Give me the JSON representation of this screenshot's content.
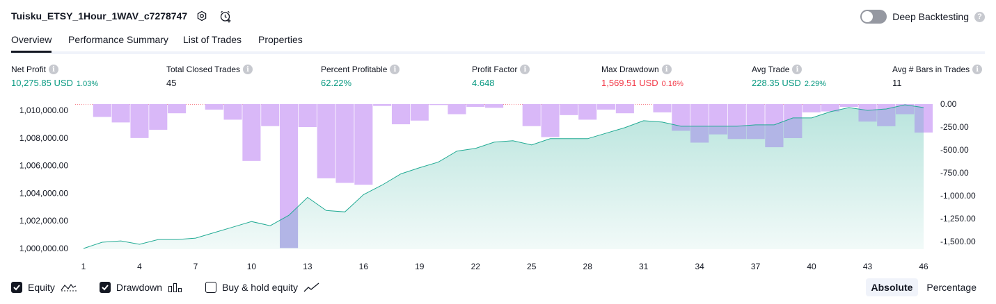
{
  "header": {
    "strategy_name": "Tuisku_ETSY_1Hour_1WAV_c7278747",
    "deep_backtesting_label": "Deep Backtesting",
    "deep_backtesting_enabled": false
  },
  "tabs": [
    {
      "label": "Overview",
      "active": true
    },
    {
      "label": "Performance Summary",
      "active": false
    },
    {
      "label": "List of Trades",
      "active": false
    },
    {
      "label": "Properties",
      "active": false
    }
  ],
  "metrics": [
    {
      "label": "Net Profit",
      "value": "10,275.85 USD",
      "pct": "1.03%",
      "tone": "pos"
    },
    {
      "label": "Total Closed Trades",
      "value": "45",
      "pct": "",
      "tone": "neu"
    },
    {
      "label": "Percent Profitable",
      "value": "62.22%",
      "pct": "",
      "tone": "pos"
    },
    {
      "label": "Profit Factor",
      "value": "4.648",
      "pct": "",
      "tone": "pos"
    },
    {
      "label": "Max Drawdown",
      "value": "1,569.51 USD",
      "pct": "0.16%",
      "tone": "neg"
    },
    {
      "label": "Avg Trade",
      "value": "228.35 USD",
      "pct": "2.29%",
      "tone": "pos"
    },
    {
      "label": "Avg # Bars in Trades",
      "value": "11",
      "pct": "",
      "tone": "neu"
    }
  ],
  "legend": {
    "equity_label": "Equity",
    "equity_checked": true,
    "drawdown_label": "Drawdown",
    "drawdown_checked": true,
    "buyhold_label": "Buy & hold equity",
    "buyhold_checked": false
  },
  "mode": {
    "absolute_label": "Absolute",
    "percentage_label": "Percentage",
    "selected": "Absolute"
  },
  "colors": {
    "equity_line": "#22ab94",
    "equity_fill": "#22ab94",
    "drawdown_bar": "#d9b8f8",
    "drawdown_overlap": "#b2b5e6",
    "positive": "#089981",
    "negative": "#f23645"
  },
  "chart_data": {
    "type": "line",
    "x": [
      1,
      2,
      3,
      4,
      5,
      6,
      7,
      8,
      9,
      10,
      11,
      12,
      13,
      14,
      15,
      16,
      17,
      18,
      19,
      20,
      21,
      22,
      23,
      24,
      25,
      26,
      27,
      28,
      29,
      30,
      31,
      32,
      33,
      34,
      35,
      36,
      37,
      38,
      39,
      40,
      41,
      42,
      43,
      44,
      45,
      46
    ],
    "x_tick_labels": [
      "1",
      "4",
      "7",
      "10",
      "13",
      "16",
      "19",
      "22",
      "25",
      "28",
      "31",
      "34",
      "37",
      "40",
      "43",
      "46"
    ],
    "equity": {
      "name": "Equity",
      "axis": "left",
      "values": [
        1000000,
        1000450,
        1000550,
        1000300,
        1000650,
        1000650,
        1000750,
        1001150,
        1001550,
        1001950,
        1001650,
        1002400,
        1003700,
        1002750,
        1002650,
        1003900,
        1004600,
        1005400,
        1005850,
        1006250,
        1007050,
        1007250,
        1007700,
        1007800,
        1007500,
        1007950,
        1007950,
        1007950,
        1008350,
        1008750,
        1009250,
        1009150,
        1008850,
        1008850,
        1008850,
        1008850,
        1008950,
        1008950,
        1009450,
        1009450,
        1009900,
        1010200,
        1010000,
        1010100,
        1010400,
        1010200
      ]
    },
    "drawdown": {
      "name": "Drawdown",
      "axis": "right",
      "values": [
        0,
        -140,
        -200,
        -370,
        -280,
        -100,
        0,
        -60,
        -170,
        -620,
        -240,
        -1570,
        -250,
        -810,
        -860,
        -880,
        -20,
        -220,
        -180,
        -10,
        -110,
        -30,
        -40,
        0,
        -240,
        -360,
        -120,
        -170,
        -60,
        -100,
        0,
        -90,
        -290,
        -420,
        -330,
        -380,
        -380,
        -470,
        -370,
        -90,
        -80,
        -30,
        -190,
        -240,
        -110,
        -310
      ]
    },
    "left_axis": {
      "min": 999500,
      "max": 1010500,
      "ticks": [
        "1,000,000.00",
        "1,002,000.00",
        "1,004,000.00",
        "1,006,000.00",
        "1,008,000.00",
        "1,010,000.00"
      ],
      "tick_values": [
        1000000,
        1002000,
        1004000,
        1006000,
        1008000,
        1010000
      ]
    },
    "right_axis": {
      "min": -1600,
      "max": 0,
      "ticks": [
        "0.00",
        "-250.00",
        "-500.00",
        "-750.00",
        "-1,000.00",
        "-1,250.00",
        "-1,500.00"
      ],
      "tick_values": [
        0,
        -250,
        -500,
        -750,
        -1000,
        -1250,
        -1500
      ]
    },
    "grid": false,
    "legend_position": "bottom-left"
  }
}
